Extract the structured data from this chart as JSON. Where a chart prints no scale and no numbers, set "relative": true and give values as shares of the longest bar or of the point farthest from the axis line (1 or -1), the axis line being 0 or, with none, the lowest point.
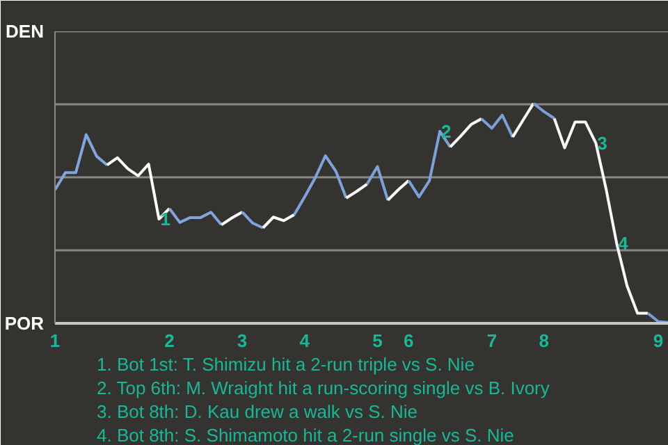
{
  "chart_data": {
    "type": "line",
    "relative": true,
    "ref_lines": [
      {
        "axis": "y",
        "value": 0.332,
        "color": "#8a8886"
      },
      {
        "axis": "y",
        "value": 0.664,
        "color": "#8a8886"
      },
      {
        "axis": "y",
        "value": 0.996,
        "color": "#8a8886"
      },
      {
        "axis": "y",
        "value": 1.328,
        "color": "#8a8886"
      }
    ],
    "categories": [
      "1",
      null,
      null,
      null,
      null,
      null,
      null,
      null,
      null,
      null,
      null,
      "2",
      null,
      null,
      null,
      null,
      null,
      null,
      "3",
      null,
      null,
      null,
      null,
      null,
      "4",
      null,
      null,
      null,
      null,
      null,
      null,
      "5",
      null,
      null,
      "6",
      null,
      null,
      null,
      null,
      null,
      null,
      null,
      "7",
      null,
      null,
      null,
      null,
      "8",
      null,
      null,
      null,
      null,
      null,
      null,
      null,
      null,
      null,
      null,
      "9",
      null
    ],
    "series": [
      {
        "color": "#7fa7dd",
        "values": [
          0.607,
          0.685,
          0.685,
          0.858,
          0.76,
          0.72,
          null,
          null,
          null,
          null,
          null,
          null,
          null,
          null,
          null,
          null,
          null,
          null,
          null,
          null,
          null,
          null,
          null,
          null,
          null,
          null,
          null,
          null,
          null,
          null,
          null,
          null,
          null,
          null,
          null,
          null,
          null,
          null,
          null,
          null,
          null,
          null,
          null,
          null,
          null,
          null,
          null,
          null,
          null,
          null,
          null,
          null,
          null,
          null,
          null,
          null,
          null,
          null,
          null,
          null
        ]
      },
      {
        "color": "#ffffff",
        "values": [
          null,
          null,
          null,
          null,
          null,
          0.72,
          0.753,
          0.703,
          0.671,
          0.724,
          0.474,
          0.522,
          null,
          null,
          null,
          null,
          null,
          null,
          null,
          null,
          null,
          null,
          null,
          null,
          null,
          null,
          null,
          null,
          null,
          null,
          null,
          null,
          null,
          null,
          null,
          null,
          null,
          null,
          null,
          null,
          null,
          null,
          null,
          null,
          null,
          null,
          null,
          null,
          null,
          null,
          null,
          null,
          null,
          null,
          null,
          null,
          null,
          null,
          null,
          null
        ]
      },
      {
        "color": "#7fa7dd",
        "values": [
          null,
          null,
          null,
          null,
          null,
          null,
          null,
          null,
          null,
          null,
          null,
          0.522,
          0.459,
          0.481,
          0.481,
          0.505,
          0.448,
          null,
          null,
          null,
          null,
          null,
          null,
          null,
          null,
          null,
          null,
          null,
          null,
          null,
          null,
          null,
          null,
          null,
          null,
          null,
          null,
          null,
          null,
          null,
          null,
          null,
          null,
          null,
          null,
          null,
          null,
          null,
          null,
          null,
          null,
          null,
          null,
          null,
          null,
          null,
          null,
          null,
          null,
          null
        ]
      },
      {
        "color": "#ffffff",
        "values": [
          null,
          null,
          null,
          null,
          null,
          null,
          null,
          null,
          null,
          null,
          null,
          null,
          null,
          null,
          null,
          null,
          0.448,
          0.479,
          0.506,
          null,
          null,
          null,
          null,
          null,
          null,
          null,
          null,
          null,
          null,
          null,
          null,
          null,
          null,
          null,
          null,
          null,
          null,
          null,
          null,
          null,
          null,
          null,
          null,
          null,
          null,
          null,
          null,
          null,
          null,
          null,
          null,
          null,
          null,
          null,
          null,
          null,
          null,
          null,
          null,
          null
        ]
      },
      {
        "color": "#7fa7dd",
        "values": [
          null,
          null,
          null,
          null,
          null,
          null,
          null,
          null,
          null,
          null,
          null,
          null,
          null,
          null,
          null,
          null,
          null,
          null,
          0.506,
          0.456,
          0.434,
          null,
          null,
          null,
          null,
          null,
          null,
          null,
          null,
          null,
          null,
          null,
          null,
          null,
          null,
          null,
          null,
          null,
          null,
          null,
          null,
          null,
          null,
          null,
          null,
          null,
          null,
          null,
          null,
          null,
          null,
          null,
          null,
          null,
          null,
          null,
          null,
          null,
          null,
          null
        ]
      },
      {
        "color": "#ffffff",
        "values": [
          null,
          null,
          null,
          null,
          null,
          null,
          null,
          null,
          null,
          null,
          null,
          null,
          null,
          null,
          null,
          null,
          null,
          null,
          null,
          null,
          0.434,
          0.483,
          0.467,
          0.494,
          null,
          null,
          null,
          null,
          null,
          null,
          null,
          null,
          null,
          null,
          null,
          null,
          null,
          null,
          null,
          null,
          null,
          null,
          null,
          null,
          null,
          null,
          null,
          null,
          null,
          null,
          null,
          null,
          null,
          null,
          null,
          null,
          null,
          null,
          null,
          null
        ]
      },
      {
        "color": "#7fa7dd",
        "values": [
          null,
          null,
          null,
          null,
          null,
          null,
          null,
          null,
          null,
          null,
          null,
          null,
          null,
          null,
          null,
          null,
          null,
          null,
          null,
          null,
          null,
          null,
          null,
          0.494,
          0.575,
          0.66,
          0.762,
          0.692,
          0.57,
          null,
          null,
          null,
          null,
          null,
          null,
          null,
          null,
          null,
          null,
          null,
          null,
          null,
          null,
          null,
          null,
          null,
          null,
          null,
          null,
          null,
          null,
          null,
          null,
          null,
          null,
          null,
          null,
          null,
          null,
          null
        ]
      },
      {
        "color": "#ffffff",
        "values": [
          null,
          null,
          null,
          null,
          null,
          null,
          null,
          null,
          null,
          null,
          null,
          null,
          null,
          null,
          null,
          null,
          null,
          null,
          null,
          null,
          null,
          null,
          null,
          null,
          null,
          null,
          null,
          null,
          0.57,
          0.6,
          0.633,
          null,
          null,
          null,
          null,
          null,
          null,
          null,
          null,
          null,
          null,
          null,
          null,
          null,
          null,
          null,
          null,
          null,
          null,
          null,
          null,
          null,
          null,
          null,
          null,
          null,
          null,
          null,
          null,
          null
        ]
      },
      {
        "color": "#7fa7dd",
        "values": [
          null,
          null,
          null,
          null,
          null,
          null,
          null,
          null,
          null,
          null,
          null,
          null,
          null,
          null,
          null,
          null,
          null,
          null,
          null,
          null,
          null,
          null,
          null,
          null,
          null,
          null,
          null,
          null,
          null,
          null,
          0.633,
          0.713,
          0.56,
          null,
          null,
          null,
          null,
          null,
          null,
          null,
          null,
          null,
          null,
          null,
          null,
          null,
          null,
          null,
          null,
          null,
          null,
          null,
          null,
          null,
          null,
          null,
          null,
          null,
          null,
          null
        ]
      },
      {
        "color": "#ffffff",
        "values": [
          null,
          null,
          null,
          null,
          null,
          null,
          null,
          null,
          null,
          null,
          null,
          null,
          null,
          null,
          null,
          null,
          null,
          null,
          null,
          null,
          null,
          null,
          null,
          null,
          null,
          null,
          null,
          null,
          null,
          null,
          null,
          null,
          0.56,
          0.607,
          0.649,
          null,
          null,
          null,
          null,
          null,
          null,
          null,
          null,
          null,
          null,
          null,
          null,
          null,
          null,
          null,
          null,
          null,
          null,
          null,
          null,
          null,
          null,
          null,
          null,
          null
        ]
      },
      {
        "color": "#7fa7dd",
        "values": [
          null,
          null,
          null,
          null,
          null,
          null,
          null,
          null,
          null,
          null,
          null,
          null,
          null,
          null,
          null,
          null,
          null,
          null,
          null,
          null,
          null,
          null,
          null,
          null,
          null,
          null,
          null,
          null,
          null,
          null,
          null,
          null,
          null,
          null,
          0.649,
          0.575,
          0.649,
          0.873,
          0.802,
          null,
          null,
          null,
          null,
          null,
          null,
          null,
          null,
          null,
          null,
          null,
          null,
          null,
          null,
          null,
          null,
          null,
          null,
          null,
          null,
          null
        ]
      },
      {
        "color": "#ffffff",
        "values": [
          null,
          null,
          null,
          null,
          null,
          null,
          null,
          null,
          null,
          null,
          null,
          null,
          null,
          null,
          null,
          null,
          null,
          null,
          null,
          null,
          null,
          null,
          null,
          null,
          null,
          null,
          null,
          null,
          null,
          null,
          null,
          null,
          null,
          null,
          null,
          null,
          null,
          null,
          0.802,
          0.851,
          0.904,
          0.93,
          null,
          null,
          null,
          null,
          null,
          null,
          null,
          null,
          null,
          null,
          null,
          null,
          null,
          null,
          null,
          null,
          null,
          null
        ]
      },
      {
        "color": "#7fa7dd",
        "values": [
          null,
          null,
          null,
          null,
          null,
          null,
          null,
          null,
          null,
          null,
          null,
          null,
          null,
          null,
          null,
          null,
          null,
          null,
          null,
          null,
          null,
          null,
          null,
          null,
          null,
          null,
          null,
          null,
          null,
          null,
          null,
          null,
          null,
          null,
          null,
          null,
          null,
          null,
          null,
          null,
          null,
          0.93,
          0.887,
          0.947,
          0.847,
          null,
          null,
          null,
          null,
          null,
          null,
          null,
          null,
          null,
          null,
          null,
          null,
          null,
          null,
          null
        ]
      },
      {
        "color": "#ffffff",
        "values": [
          null,
          null,
          null,
          null,
          null,
          null,
          null,
          null,
          null,
          null,
          null,
          null,
          null,
          null,
          null,
          null,
          null,
          null,
          null,
          null,
          null,
          null,
          null,
          null,
          null,
          null,
          null,
          null,
          null,
          null,
          null,
          null,
          null,
          null,
          null,
          null,
          null,
          null,
          null,
          null,
          null,
          null,
          null,
          null,
          0.847,
          0.924,
          1,
          null,
          null,
          null,
          null,
          null,
          null,
          null,
          null,
          null,
          null,
          null,
          null,
          null
        ]
      },
      {
        "color": "#7fa7dd",
        "values": [
          null,
          null,
          null,
          null,
          null,
          null,
          null,
          null,
          null,
          null,
          null,
          null,
          null,
          null,
          null,
          null,
          null,
          null,
          null,
          null,
          null,
          null,
          null,
          null,
          null,
          null,
          null,
          null,
          null,
          null,
          null,
          null,
          null,
          null,
          null,
          null,
          null,
          null,
          null,
          null,
          null,
          null,
          null,
          null,
          null,
          null,
          1,
          0.963,
          0.932,
          null,
          null,
          null,
          null,
          null,
          null,
          null,
          null,
          null,
          null,
          null
        ]
      },
      {
        "color": "#ffffff",
        "values": [
          null,
          null,
          null,
          null,
          null,
          null,
          null,
          null,
          null,
          null,
          null,
          null,
          null,
          null,
          null,
          null,
          null,
          null,
          null,
          null,
          null,
          null,
          null,
          null,
          null,
          null,
          null,
          null,
          null,
          null,
          null,
          null,
          null,
          null,
          null,
          null,
          null,
          null,
          null,
          null,
          null,
          null,
          null,
          null,
          null,
          null,
          null,
          null,
          0.932,
          0.798,
          0.915,
          0.915,
          0.819,
          0.607,
          0.363,
          0.17,
          0.046,
          0.046,
          null,
          null
        ]
      },
      {
        "color": "#7fa7dd",
        "values": [
          null,
          null,
          null,
          null,
          null,
          null,
          null,
          null,
          null,
          null,
          null,
          null,
          null,
          null,
          null,
          null,
          null,
          null,
          null,
          null,
          null,
          null,
          null,
          null,
          null,
          null,
          null,
          null,
          null,
          null,
          null,
          null,
          null,
          null,
          null,
          null,
          null,
          null,
          null,
          null,
          null,
          null,
          null,
          null,
          null,
          null,
          null,
          null,
          null,
          null,
          null,
          null,
          null,
          null,
          null,
          null,
          null,
          0.046,
          0.008,
          0.004
        ]
      }
    ],
    "annotations": [
      "DEN",
      "POR",
      {
        "text": "1",
        "y": 0.474
      },
      {
        "text": "2",
        "y": 0.873
      },
      {
        "text": "3",
        "y": 0.819
      },
      {
        "text": "4",
        "y": 0.363
      },
      "1. Bot 1st: T. Shimizu hit a 2-run triple vs S. Nie",
      "2. Top 6th: M. Wraight hit a run-scoring single vs B. Ivory",
      "3. Bot 8th: D. Kau drew a walk vs S. Nie",
      "4. Bot 8th: S. Shimamoto hit a 2-run single vs S. Nie"
    ]
  }
}
